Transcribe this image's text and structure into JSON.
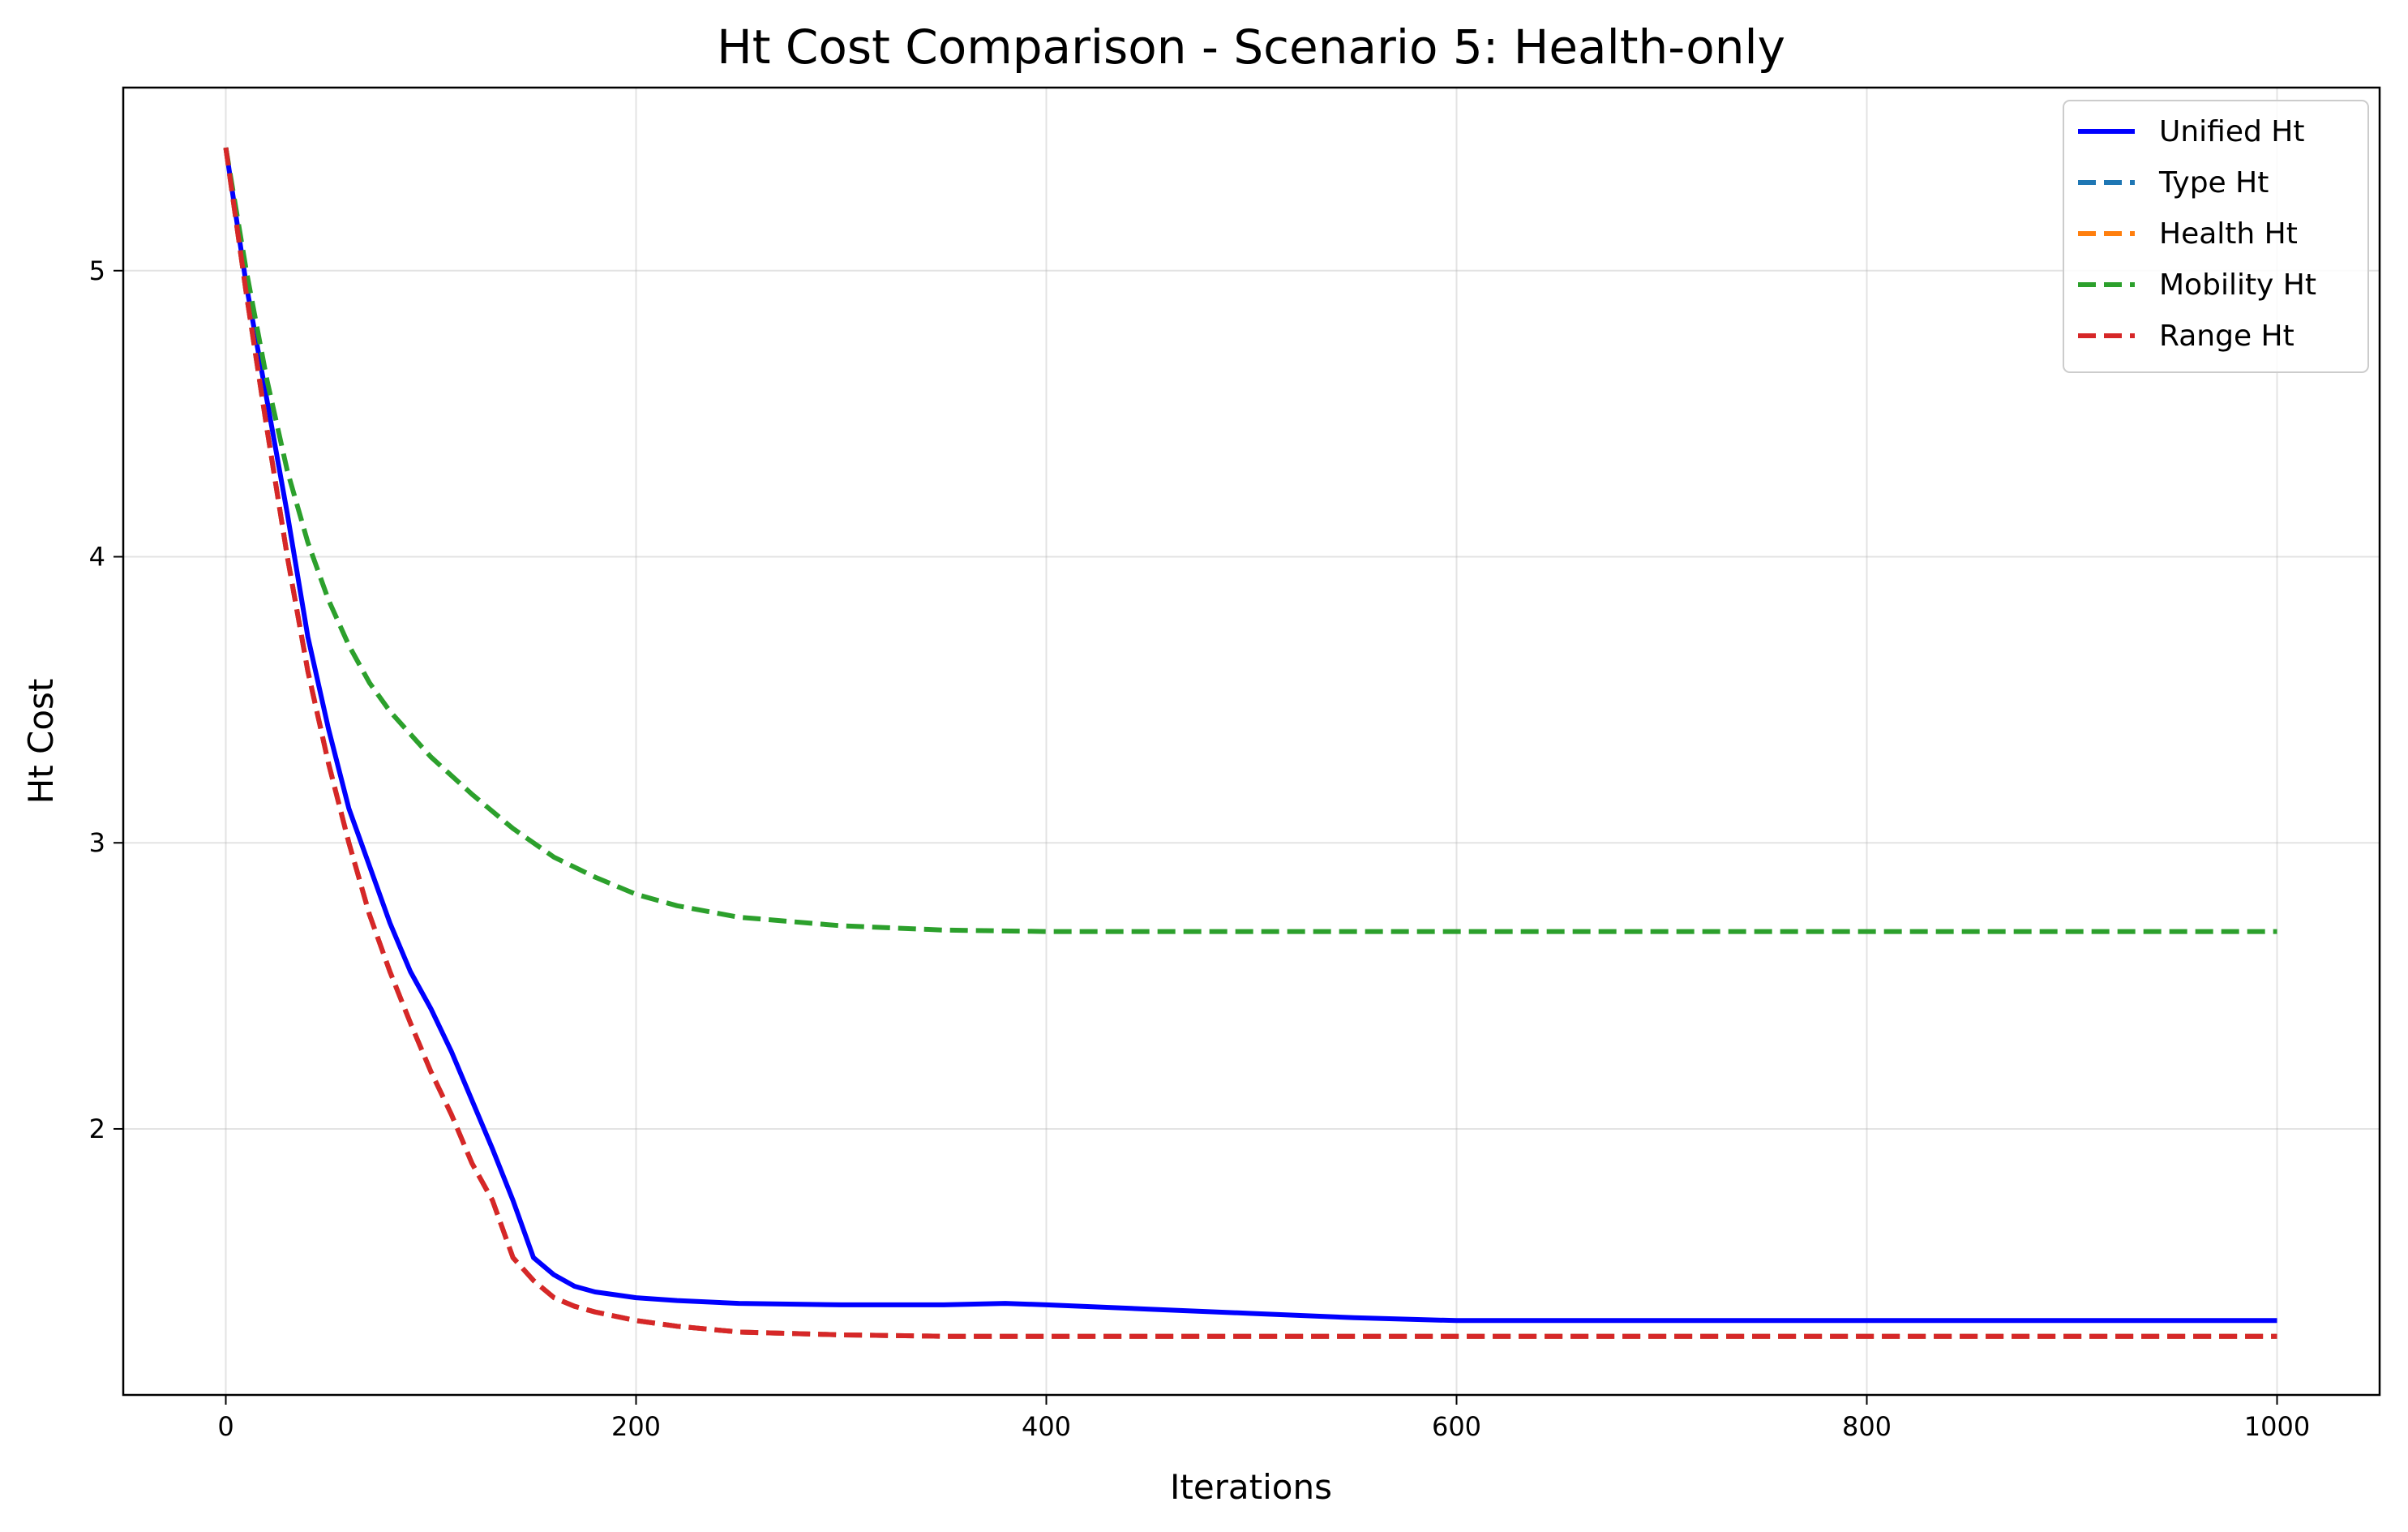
{
  "chart_data": {
    "type": "line",
    "title": "Ht Cost Comparison - Scenario 5: Health-only",
    "xlabel": "Iterations",
    "ylabel": "Ht Cost",
    "xlim": [
      -50,
      1050
    ],
    "ylim": [
      1.07,
      5.64
    ],
    "xticks": [
      0,
      200,
      400,
      600,
      800,
      1000
    ],
    "yticks": [
      2,
      3,
      4,
      5
    ],
    "grid": true,
    "legend_position": "top-right",
    "series": [
      {
        "name": "Unified Ht",
        "color": "#0000ff",
        "style": "solid",
        "x": [
          0,
          10,
          20,
          30,
          40,
          50,
          60,
          70,
          80,
          90,
          100,
          110,
          120,
          130,
          140,
          150,
          160,
          170,
          180,
          200,
          220,
          250,
          300,
          350,
          380,
          400,
          450,
          500,
          550,
          600,
          650,
          700,
          800,
          900,
          1000
        ],
        "y": [
          5.43,
          4.95,
          4.55,
          4.15,
          3.72,
          3.4,
          3.12,
          2.92,
          2.72,
          2.55,
          2.42,
          2.27,
          2.1,
          1.93,
          1.75,
          1.55,
          1.49,
          1.45,
          1.43,
          1.41,
          1.4,
          1.39,
          1.385,
          1.385,
          1.39,
          1.385,
          1.37,
          1.355,
          1.34,
          1.33,
          1.33,
          1.33,
          1.33,
          1.33,
          1.33
        ]
      },
      {
        "name": "Type Ht",
        "color": "#1f77b4",
        "style": "dashed",
        "x": [
          0,
          10,
          20,
          30,
          40,
          50,
          60,
          70,
          80,
          90,
          100,
          110,
          120,
          130,
          140,
          150,
          160,
          170,
          180,
          200,
          220,
          250,
          300,
          350,
          400,
          500,
          600,
          800,
          1000
        ],
        "y": [
          5.43,
          4.92,
          4.45,
          4.0,
          3.6,
          3.28,
          3.0,
          2.75,
          2.55,
          2.37,
          2.2,
          2.05,
          1.88,
          1.75,
          1.55,
          1.47,
          1.41,
          1.38,
          1.36,
          1.33,
          1.31,
          1.29,
          1.28,
          1.275,
          1.275,
          1.275,
          1.275,
          1.275,
          1.275
        ]
      },
      {
        "name": "Health Ht",
        "color": "#ff7f0e",
        "style": "dashed",
        "x": [
          0,
          10,
          20,
          30,
          40,
          50,
          60,
          70,
          80,
          90,
          100,
          110,
          120,
          130,
          140,
          150,
          160,
          170,
          180,
          200,
          220,
          250,
          300,
          350,
          400,
          500,
          600,
          800,
          1000
        ],
        "y": [
          5.43,
          4.92,
          4.45,
          4.0,
          3.6,
          3.28,
          3.0,
          2.75,
          2.55,
          2.37,
          2.2,
          2.05,
          1.88,
          1.75,
          1.55,
          1.47,
          1.41,
          1.38,
          1.36,
          1.33,
          1.31,
          1.29,
          1.28,
          1.275,
          1.275,
          1.275,
          1.275,
          1.275,
          1.275
        ]
      },
      {
        "name": "Mobility Ht",
        "color": "#2ca02c",
        "style": "dashed",
        "x": [
          0,
          10,
          20,
          30,
          40,
          50,
          60,
          70,
          80,
          100,
          120,
          140,
          160,
          180,
          200,
          220,
          250,
          300,
          350,
          400,
          500,
          600,
          800,
          1000
        ],
        "y": [
          5.43,
          5.0,
          4.62,
          4.3,
          4.05,
          3.85,
          3.69,
          3.56,
          3.46,
          3.3,
          3.17,
          3.05,
          2.95,
          2.88,
          2.82,
          2.78,
          2.74,
          2.71,
          2.695,
          2.69,
          2.69,
          2.69,
          2.69,
          2.69
        ]
      },
      {
        "name": "Range Ht",
        "color": "#d62728",
        "style": "dashed",
        "x": [
          0,
          10,
          20,
          30,
          40,
          50,
          60,
          70,
          80,
          90,
          100,
          110,
          120,
          130,
          140,
          150,
          160,
          170,
          180,
          200,
          220,
          250,
          300,
          350,
          400,
          500,
          600,
          800,
          1000
        ],
        "y": [
          5.43,
          4.92,
          4.45,
          4.0,
          3.6,
          3.28,
          3.0,
          2.75,
          2.55,
          2.37,
          2.2,
          2.05,
          1.88,
          1.75,
          1.55,
          1.47,
          1.41,
          1.38,
          1.36,
          1.33,
          1.31,
          1.29,
          1.28,
          1.275,
          1.275,
          1.275,
          1.275,
          1.275,
          1.275
        ]
      }
    ]
  }
}
